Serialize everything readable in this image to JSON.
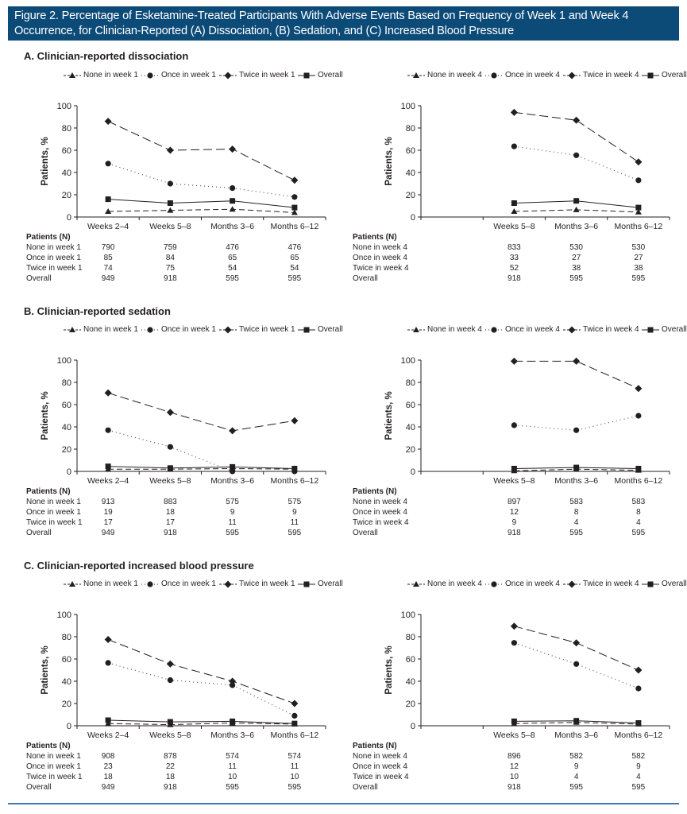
{
  "figure_title": "Figure 2. Percentage of Esketamine-Treated Participants With Adverse Events Based on Frequency of Week 1 and Week 4 Occurrence, for Clinician-Reported (A) Dissociation, (B) Sedation, and (C) Increased Blood Pressure",
  "table_header": "Patients (N)",
  "ylabel": "Patients, %",
  "sections": [
    {
      "title": "A. Clinician-reported dissociation"
    },
    {
      "title": "B. Clinician-reported sedation"
    },
    {
      "title": "C. Clinician-reported increased blood pressure"
    }
  ],
  "chart_data": [
    {
      "id": "A-week1",
      "type": "line",
      "section": "A. Clinician-reported dissociation",
      "title": "",
      "xlabel": "",
      "ylabel": "Patients, %",
      "ylim": [
        0,
        100
      ],
      "yticks": [
        0,
        20,
        40,
        60,
        80,
        100
      ],
      "categories": [
        "Weeks 2–4",
        "Weeks 5–8",
        "Months 3–6",
        "Months 6–12"
      ],
      "legend_position": "top",
      "series": [
        {
          "name": "None in week 1",
          "marker": "triangle",
          "style": "dashed",
          "values": [
            5,
            6,
            7,
            4
          ]
        },
        {
          "name": "Once in week 1",
          "marker": "circle",
          "style": "dotted",
          "values": [
            48,
            30,
            26,
            18
          ]
        },
        {
          "name": "Twice in week 1",
          "marker": "diamond",
          "style": "longdash",
          "values": [
            86,
            60,
            61,
            33
          ]
        },
        {
          "name": "Overall",
          "marker": "square",
          "style": "solid",
          "values": [
            16,
            12.5,
            14.5,
            8.5
          ]
        }
      ],
      "n_table": [
        {
          "label": "None in week 1",
          "values": [
            "790",
            "759",
            "476",
            "476"
          ]
        },
        {
          "label": "Once in week 1",
          "values": [
            "85",
            "84",
            "65",
            "65"
          ]
        },
        {
          "label": "Twice in week 1",
          "values": [
            "74",
            "75",
            "54",
            "54"
          ]
        },
        {
          "label": "Overall",
          "values": [
            "949",
            "918",
            "595",
            "595"
          ]
        }
      ]
    },
    {
      "id": "A-week4",
      "type": "line",
      "section": "A. Clinician-reported dissociation",
      "title": "",
      "xlabel": "",
      "ylabel": "Patients, %",
      "ylim": [
        0,
        100
      ],
      "yticks": [
        0,
        20,
        40,
        60,
        80,
        100
      ],
      "categories": [
        "",
        "Weeks 5–8",
        "Months 3–6",
        "Months 6–12"
      ],
      "legend_position": "top",
      "series": [
        {
          "name": "None in week 4",
          "marker": "triangle",
          "style": "dashed",
          "values": [
            null,
            5,
            6.5,
            4.5
          ]
        },
        {
          "name": "Once in week 4",
          "marker": "circle",
          "style": "dotted",
          "values": [
            null,
            63.5,
            55.5,
            33
          ]
        },
        {
          "name": "Twice in week 4",
          "marker": "diamond",
          "style": "longdash",
          "values": [
            null,
            94,
            87,
            49.5
          ]
        },
        {
          "name": "Overall",
          "marker": "square",
          "style": "solid",
          "values": [
            null,
            12.5,
            14.5,
            8.5
          ]
        }
      ],
      "n_table": [
        {
          "label": "None in week 4",
          "values": [
            "",
            "833",
            "530",
            "530"
          ]
        },
        {
          "label": "Once in week 4",
          "values": [
            "",
            "33",
            "27",
            "27"
          ]
        },
        {
          "label": "Twice in week 4",
          "values": [
            "",
            "52",
            "38",
            "38"
          ]
        },
        {
          "label": "Overall",
          "values": [
            "",
            "918",
            "595",
            "595"
          ]
        }
      ]
    },
    {
      "id": "B-week1",
      "type": "line",
      "section": "B. Clinician-reported sedation",
      "title": "",
      "xlabel": "",
      "ylabel": "Patients, %",
      "ylim": [
        0,
        100
      ],
      "yticks": [
        0,
        20,
        40,
        60,
        80,
        100
      ],
      "categories": [
        "Weeks 2–4",
        "Weeks 5–8",
        "Months 3–6",
        "Months 6–12"
      ],
      "legend_position": "top",
      "series": [
        {
          "name": "None in week 1",
          "marker": "triangle",
          "style": "dashed",
          "values": [
            2,
            2,
            2.5,
            2
          ]
        },
        {
          "name": "Once in week 1",
          "marker": "circle",
          "style": "dotted",
          "values": [
            37,
            22,
            0,
            0
          ]
        },
        {
          "name": "Twice in week 1",
          "marker": "diamond",
          "style": "longdash",
          "values": [
            70.5,
            53,
            36.5,
            45.5
          ]
        },
        {
          "name": "Overall",
          "marker": "square",
          "style": "solid",
          "values": [
            4.5,
            3,
            4,
            2.5
          ]
        }
      ],
      "n_table": [
        {
          "label": "None in week 1",
          "values": [
            "913",
            "883",
            "575",
            "575"
          ]
        },
        {
          "label": "Once in week 1",
          "values": [
            "19",
            "18",
            "9",
            "9"
          ]
        },
        {
          "label": "Twice in week 1",
          "values": [
            "17",
            "17",
            "11",
            "11"
          ]
        },
        {
          "label": "Overall",
          "values": [
            "949",
            "918",
            "595",
            "595"
          ]
        }
      ]
    },
    {
      "id": "B-week4",
      "type": "line",
      "section": "B. Clinician-reported sedation",
      "title": "",
      "xlabel": "",
      "ylabel": "Patients, %",
      "ylim": [
        0,
        100
      ],
      "yticks": [
        0,
        20,
        40,
        60,
        80,
        100
      ],
      "categories": [
        "",
        "Weeks 5–8",
        "Months 3–6",
        "Months 6–12"
      ],
      "legend_position": "top",
      "series": [
        {
          "name": "None in week 4",
          "marker": "triangle",
          "style": "dashed",
          "values": [
            null,
            0.5,
            2,
            1
          ]
        },
        {
          "name": "Once in week 4",
          "marker": "circle",
          "style": "dotted",
          "values": [
            null,
            41.5,
            37,
            50
          ]
        },
        {
          "name": "Twice in week 4",
          "marker": "diamond",
          "style": "longdash",
          "values": [
            null,
            99,
            99,
            74.5
          ]
        },
        {
          "name": "Overall",
          "marker": "square",
          "style": "solid",
          "values": [
            null,
            2.5,
            3.5,
            2.5
          ]
        }
      ],
      "n_table": [
        {
          "label": "None in week 4",
          "values": [
            "",
            "897",
            "583",
            "583"
          ]
        },
        {
          "label": "Once in week 4",
          "values": [
            "",
            "12",
            "8",
            "8"
          ]
        },
        {
          "label": "Twice in week 4",
          "values": [
            "",
            "9",
            "4",
            "4"
          ]
        },
        {
          "label": "Overall",
          "values": [
            "",
            "918",
            "595",
            "595"
          ]
        }
      ]
    },
    {
      "id": "C-week1",
      "type": "line",
      "section": "C. Clinician-reported increased blood pressure",
      "title": "",
      "xlabel": "",
      "ylabel": "Patients, %",
      "ylim": [
        0,
        100
      ],
      "yticks": [
        0,
        20,
        40,
        60,
        80,
        100
      ],
      "categories": [
        "Weeks 2–4",
        "Weeks 5–8",
        "Months 3–6",
        "Months 6–12"
      ],
      "legend_position": "top",
      "series": [
        {
          "name": "None in week 1",
          "marker": "triangle",
          "style": "dashed",
          "values": [
            2,
            1,
            2.5,
            1.5
          ]
        },
        {
          "name": "Once in week 1",
          "marker": "circle",
          "style": "dotted",
          "values": [
            56.5,
            41,
            36.5,
            9
          ]
        },
        {
          "name": "Twice in week 1",
          "marker": "diamond",
          "style": "longdash",
          "values": [
            77.5,
            55.5,
            40,
            20
          ]
        },
        {
          "name": "Overall",
          "marker": "square",
          "style": "solid",
          "values": [
            5,
            3.5,
            4,
            2
          ]
        }
      ],
      "n_table": [
        {
          "label": "None in week 1",
          "values": [
            "908",
            "878",
            "574",
            "574"
          ]
        },
        {
          "label": "Once in week 1",
          "values": [
            "23",
            "22",
            "11",
            "11"
          ]
        },
        {
          "label": "Twice in week 1",
          "values": [
            "18",
            "18",
            "10",
            "10"
          ]
        },
        {
          "label": "Overall",
          "values": [
            "949",
            "918",
            "595",
            "595"
          ]
        }
      ]
    },
    {
      "id": "C-week4",
      "type": "line",
      "section": "C. Clinician-reported increased blood pressure",
      "title": "",
      "xlabel": "",
      "ylabel": "Patients, %",
      "ylim": [
        0,
        100
      ],
      "yticks": [
        0,
        20,
        40,
        60,
        80,
        100
      ],
      "categories": [
        "",
        "Weeks 5–8",
        "Months 3–6",
        "Months 6–12"
      ],
      "legend_position": "top",
      "series": [
        {
          "name": "None in week 4",
          "marker": "triangle",
          "style": "dashed",
          "values": [
            null,
            2,
            3,
            1.5
          ]
        },
        {
          "name": "Once in week 4",
          "marker": "circle",
          "style": "dotted",
          "values": [
            null,
            74.5,
            55.5,
            33.5
          ]
        },
        {
          "name": "Twice in week 4",
          "marker": "diamond",
          "style": "longdash",
          "values": [
            null,
            89.5,
            74.5,
            50
          ]
        },
        {
          "name": "Overall",
          "marker": "square",
          "style": "solid",
          "values": [
            null,
            4,
            4.5,
            2.5
          ]
        }
      ],
      "n_table": [
        {
          "label": "None in week 4",
          "values": [
            "",
            "896",
            "582",
            "582"
          ]
        },
        {
          "label": "Once in week 4",
          "values": [
            "",
            "12",
            "9",
            "9"
          ]
        },
        {
          "label": "Twice in week 4",
          "values": [
            "",
            "10",
            "4",
            "4"
          ]
        },
        {
          "label": "Overall",
          "values": [
            "",
            "918",
            "595",
            "595"
          ]
        }
      ]
    }
  ]
}
